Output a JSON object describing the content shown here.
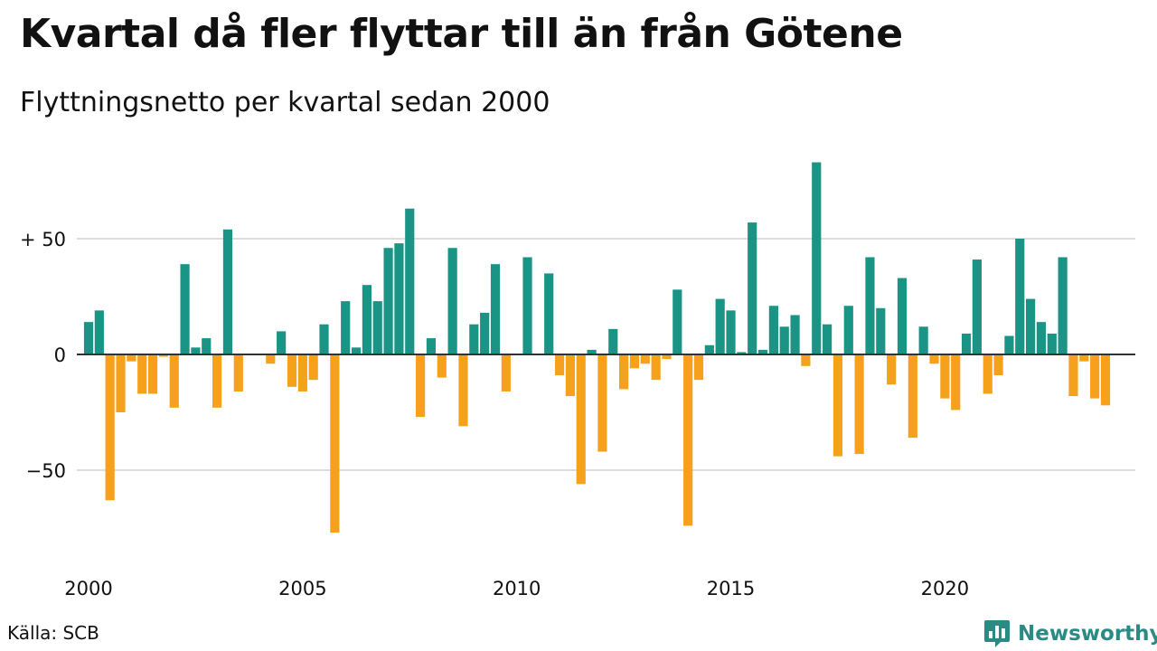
{
  "title": "Kvartal då fler flyttar till än från Götene",
  "subtitle": "Flyttningsnetto per kvartal sedan 2000",
  "source": "Källa: SCB",
  "brand": "Newsworthy",
  "brand_icon": "bar-chart-speech-bubble-icon",
  "colors": {
    "positive": "#1a9485",
    "negative": "#f5a11b",
    "grid": "#dddddd",
    "zero_line": "#333333",
    "brand": "#2a8a84"
  },
  "chart_data": {
    "type": "bar",
    "title": "Kvartal då fler flyttar till än från Götene",
    "subtitle": "Flyttningsnetto per kvartal sedan 2000",
    "xlabel": "",
    "ylabel": "",
    "ylim": [
      -90,
      90
    ],
    "grid": true,
    "yticks": [
      {
        "value": 50,
        "label": "+ 50"
      },
      {
        "value": 0,
        "label": "0"
      },
      {
        "value": -50,
        "label": "−50"
      }
    ],
    "xticks": [
      "2000",
      "2005",
      "2010",
      "2015",
      "2020"
    ],
    "categories": [
      "2000K1",
      "2000K2",
      "2000K3",
      "2000K4",
      "2001K1",
      "2001K2",
      "2001K3",
      "2001K4",
      "2002K1",
      "2002K2",
      "2002K3",
      "2002K4",
      "2003K1",
      "2003K2",
      "2003K3",
      "2003K4",
      "2004K1",
      "2004K2",
      "2004K3",
      "2004K4",
      "2005K1",
      "2005K2",
      "2005K3",
      "2005K4",
      "2006K1",
      "2006K2",
      "2006K3",
      "2006K4",
      "2007K1",
      "2007K2",
      "2007K3",
      "2007K4",
      "2008K1",
      "2008K2",
      "2008K3",
      "2008K4",
      "2009K1",
      "2009K2",
      "2009K3",
      "2009K4",
      "2010K1",
      "2010K2",
      "2010K3",
      "2010K4",
      "2011K1",
      "2011K2",
      "2011K3",
      "2011K4",
      "2012K1",
      "2012K2",
      "2012K3",
      "2012K4",
      "2013K1",
      "2013K2",
      "2013K3",
      "2013K4",
      "2014K1",
      "2014K2",
      "2014K3",
      "2014K4",
      "2015K1",
      "2015K2",
      "2015K3",
      "2015K4",
      "2016K1",
      "2016K2",
      "2016K3",
      "2016K4",
      "2017K1",
      "2017K2",
      "2017K3",
      "2017K4",
      "2018K1",
      "2018K2",
      "2018K3",
      "2018K4",
      "2019K1",
      "2019K2",
      "2019K3",
      "2019K4",
      "2020K1",
      "2020K2",
      "2020K3",
      "2020K4",
      "2021K1",
      "2021K2",
      "2021K3",
      "2021K4",
      "2022K1",
      "2022K2",
      "2022K3",
      "2022K4",
      "2023K1",
      "2023K2",
      "2023K3",
      "2023K4",
      "2024K1"
    ],
    "values": [
      14,
      19,
      -63,
      -25,
      -3,
      -17,
      -17,
      -1,
      -23,
      39,
      3,
      7,
      -23,
      54,
      -16,
      0,
      0,
      -4,
      10,
      -14,
      -16,
      -11,
      13,
      -77,
      23,
      3,
      30,
      23,
      46,
      48,
      63,
      -27,
      7,
      -10,
      46,
      -31,
      13,
      18,
      39,
      -16,
      0,
      42,
      0,
      35,
      -9,
      -18,
      -56,
      2,
      -42,
      11,
      -15,
      -6,
      -4,
      -11,
      -2,
      28,
      -74,
      -11,
      4,
      24,
      19,
      1,
      57,
      2,
      21,
      12,
      17,
      -5,
      83,
      13,
      -44,
      21,
      -43,
      42,
      20,
      -13,
      33,
      -36,
      12,
      -4,
      -19,
      -24,
      9,
      41,
      -17,
      -9,
      8,
      50,
      24,
      14,
      9,
      42,
      -18,
      -3,
      -19,
      -22,
      0
    ]
  }
}
